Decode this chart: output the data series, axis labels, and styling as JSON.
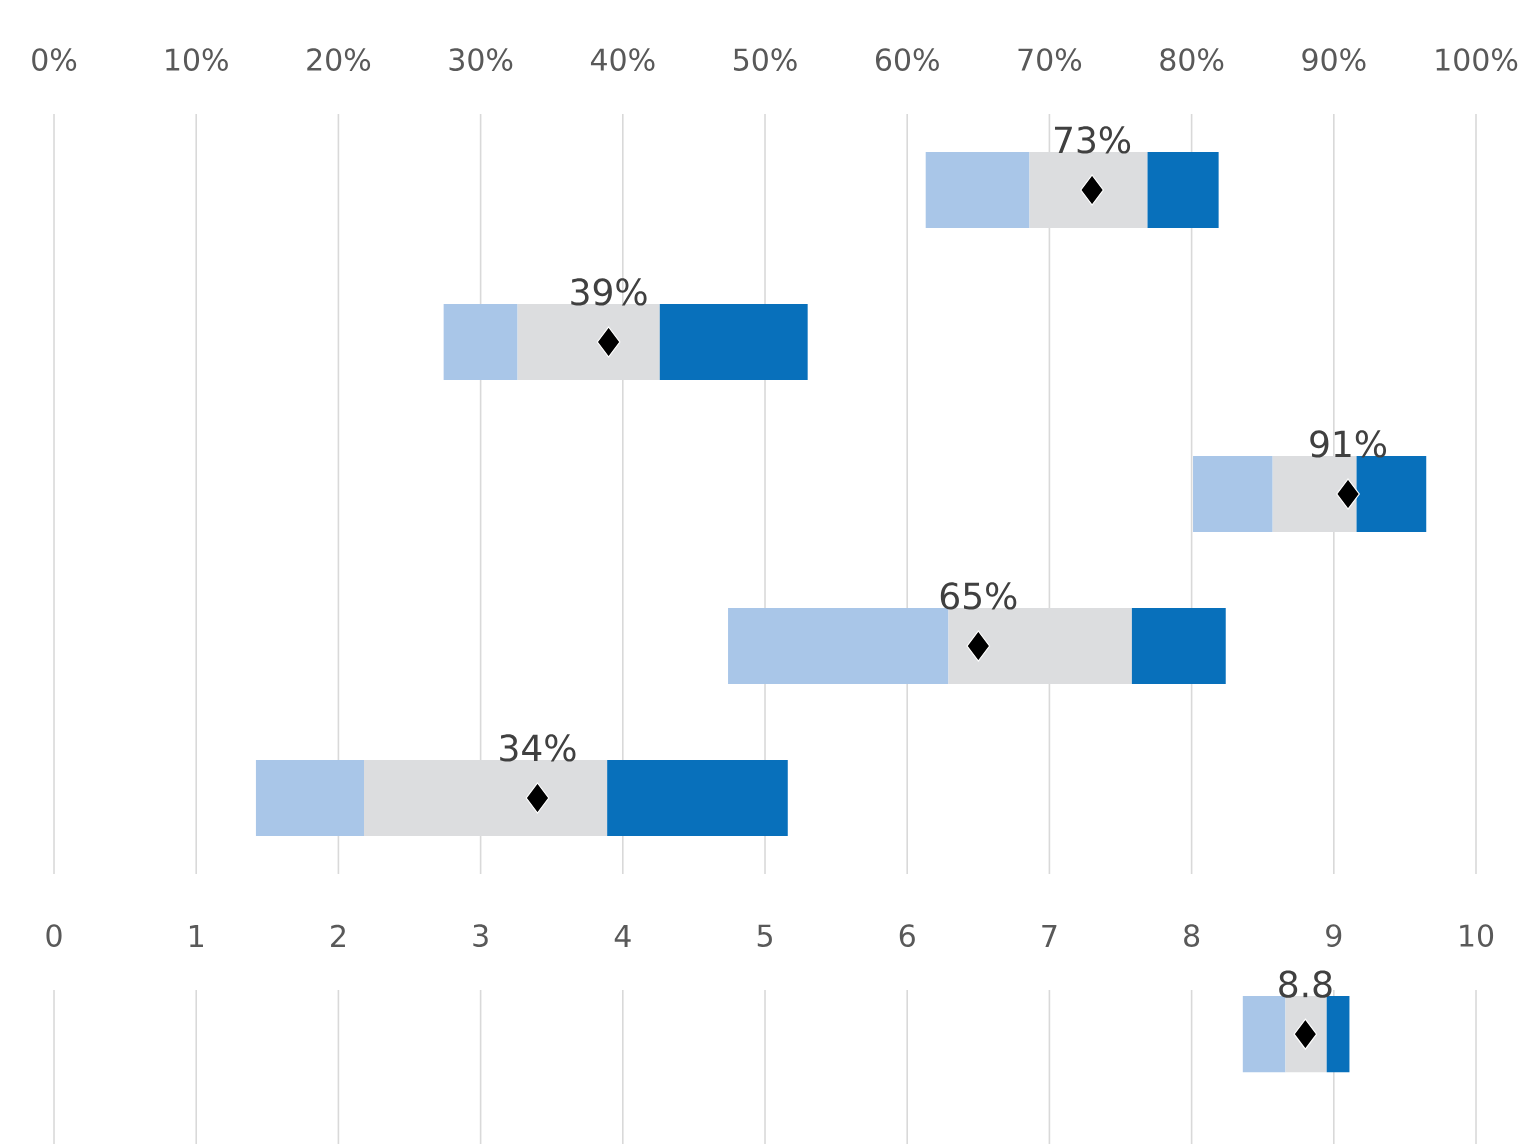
{
  "chart_data": [
    {
      "type": "bar",
      "orientation": "horizontal",
      "categories": [
        null,
        null,
        null,
        null,
        null
      ],
      "xlim": [
        0,
        100
      ],
      "xticks": [
        {
          "value": 0,
          "label": "0%"
        },
        {
          "value": 10,
          "label": "10%"
        },
        {
          "value": 20,
          "label": "20%"
        },
        {
          "value": 30,
          "label": "30%"
        },
        {
          "value": 40,
          "label": "40%"
        },
        {
          "value": 50,
          "label": "50%"
        },
        {
          "value": 60,
          "label": "60%"
        },
        {
          "value": 70,
          "label": "70%"
        },
        {
          "value": 80,
          "label": "80%"
        },
        {
          "value": 90,
          "label": "90%"
        },
        {
          "value": 100,
          "label": "100%"
        }
      ],
      "grid": "x",
      "series": [
        {
          "color": "#a9c6e8",
          "base": [
            61.3,
            27.4,
            80.1,
            47.4,
            14.2
          ],
          "values": [
            7.3,
            5.2,
            5.6,
            15.5,
            7.6
          ]
        },
        {
          "color": "#dcdddf",
          "base": [
            68.6,
            32.6,
            85.7,
            62.9,
            21.8
          ],
          "values": [
            8.3,
            10.0,
            5.9,
            12.9,
            17.1
          ]
        },
        {
          "color": "#0870bb",
          "base": [
            76.9,
            42.6,
            91.6,
            75.8,
            38.9
          ],
          "values": [
            5.0,
            10.4,
            4.9,
            6.6,
            12.7
          ]
        },
        {
          "type": "scatter",
          "color": "#000000",
          "marker": "diamond",
          "values": [
            73,
            39,
            91,
            65,
            34
          ],
          "value_labels": [
            "73%",
            "39%",
            "91%",
            "65%",
            "34%"
          ]
        }
      ]
    },
    {
      "type": "bar",
      "orientation": "horizontal",
      "categories": [
        null
      ],
      "xlim": [
        0,
        10
      ],
      "xticks": [
        0,
        1,
        2,
        3,
        4,
        5,
        6,
        7,
        8,
        9,
        10
      ],
      "grid": "x",
      "series": [
        {
          "color": "#a9c6e8",
          "base": [
            8.36
          ],
          "values": [
            0.3
          ]
        },
        {
          "color": "#dcdddf",
          "base": [
            8.66
          ],
          "values": [
            0.29
          ]
        },
        {
          "color": "#0870bb",
          "base": [
            8.95
          ],
          "values": [
            0.16
          ]
        },
        {
          "type": "scatter",
          "color": "#000000",
          "marker": "diamond",
          "values": [
            8.8
          ],
          "value_labels": [
            "8.8"
          ]
        }
      ]
    }
  ]
}
